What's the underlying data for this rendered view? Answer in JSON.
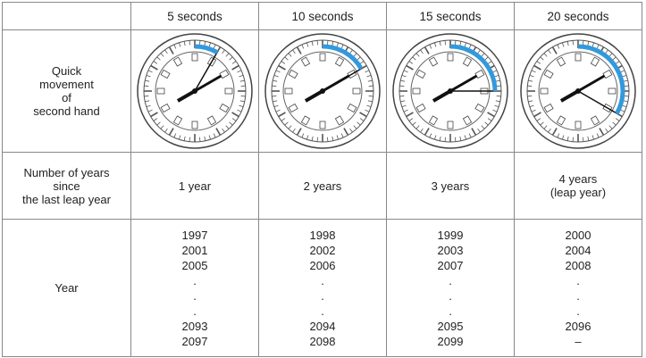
{
  "table": {
    "header": [
      "5 seconds",
      "10 seconds",
      "15 seconds",
      "20 seconds"
    ],
    "rows": [
      {
        "label": [
          "Quick",
          "movement",
          "of",
          "second hand"
        ]
      },
      {
        "label": [
          "Number of years",
          "since",
          "the last leap year"
        ],
        "cells": [
          [
            "1 year"
          ],
          [
            "2 years"
          ],
          [
            "3 years"
          ],
          [
            "4 years",
            "(leap year)"
          ]
        ]
      },
      {
        "label": [
          "Year"
        ],
        "cells": [
          [
            "1997",
            "2001",
            "2005",
            ".",
            ".",
            ".",
            "2093",
            "2097"
          ],
          [
            "1998",
            "2002",
            "2006",
            ".",
            ".",
            ".",
            "2094",
            "2098"
          ],
          [
            "1999",
            "2003",
            "2007",
            ".",
            ".",
            ".",
            "2095",
            "2099"
          ],
          [
            "2000",
            "2004",
            "2008",
            ".",
            ".",
            ".",
            "2096",
            "–"
          ]
        ]
      }
    ]
  }
}
